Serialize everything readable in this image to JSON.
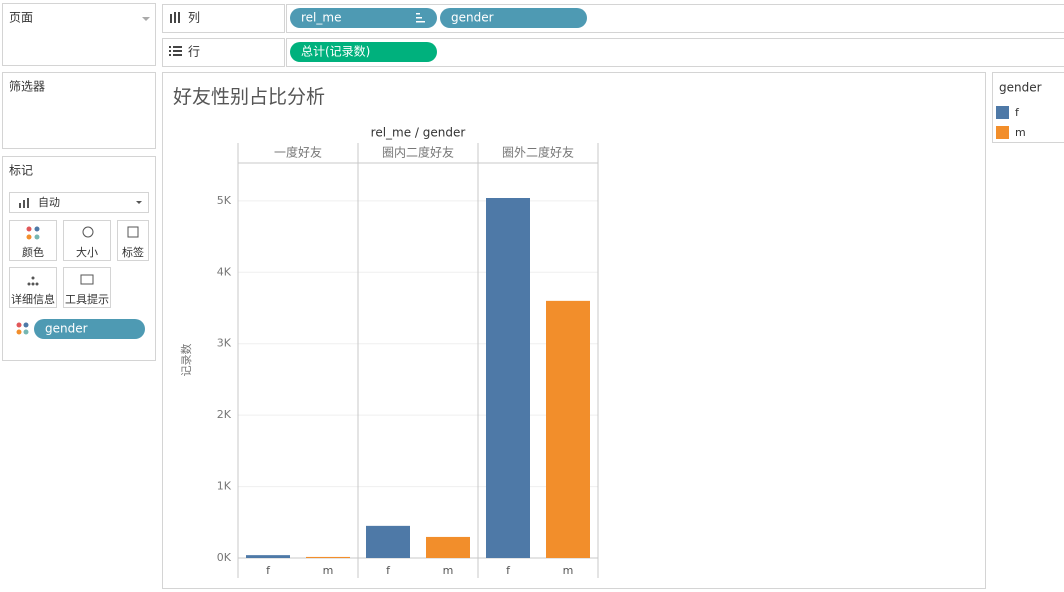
{
  "ui": {
    "pages": "页面",
    "columns_label": "列",
    "columns_pills": [
      "rel_me",
      "gender"
    ],
    "rows_label": "行",
    "rows_pill": "总计(记录数)",
    "filters": "筛选器",
    "marks": "标记",
    "mark_type": "自动",
    "mark_buttons": [
      "颜色",
      "大小",
      "标签",
      "详细信息",
      "工具提示"
    ],
    "mark_pill": "gender"
  },
  "chart_data": {
    "type": "bar",
    "title": "好友性别占比分析",
    "header": "rel_me / gender",
    "y_label": "记录数",
    "categories": [
      "一度好友",
      "圈内二度好友",
      "圈外二度好友"
    ],
    "series": [
      {
        "name": "f",
        "color": "#4e79a7",
        "values": [
          40,
          450,
          5040
        ]
      },
      {
        "name": "m",
        "color": "#f28e2b",
        "values": [
          15,
          295,
          3600
        ]
      }
    ],
    "ylim": [
      0,
      5530
    ],
    "yticks": [
      {
        "value": 0,
        "label": "0K"
      },
      {
        "value": 1000,
        "label": "1K"
      },
      {
        "value": 2000,
        "label": "2K"
      },
      {
        "value": 3000,
        "label": "3K"
      },
      {
        "value": 4000,
        "label": "4K"
      },
      {
        "value": 5000,
        "label": "5K"
      }
    ],
    "grid": true,
    "legend_title": "gender",
    "legend": "right"
  }
}
